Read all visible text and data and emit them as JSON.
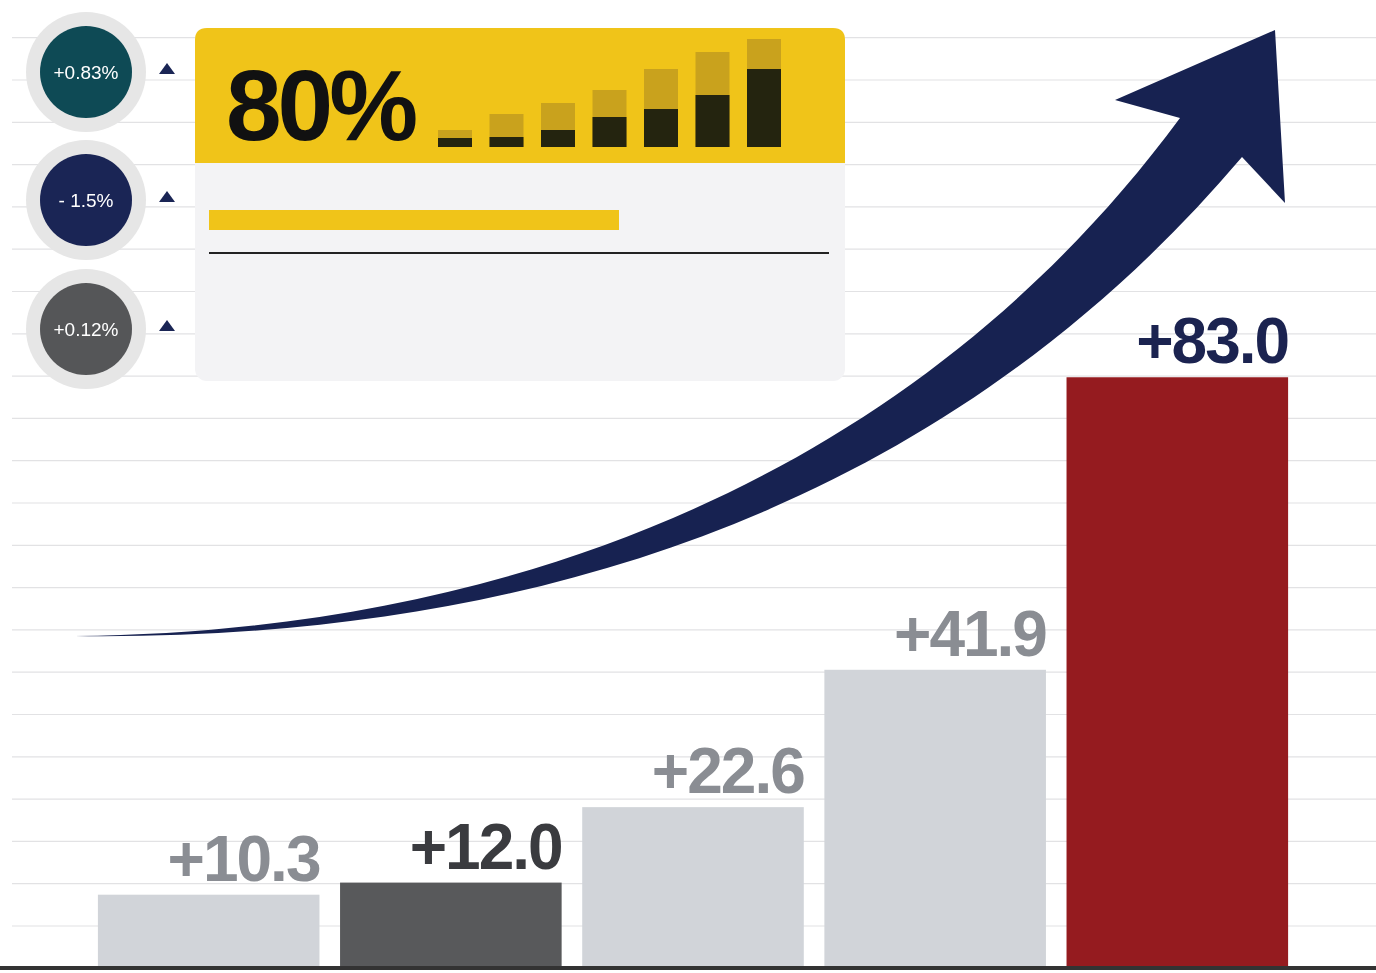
{
  "chart_data": {
    "type": "bar",
    "categories": [
      null,
      null,
      null,
      null,
      null
    ],
    "values": [
      10.3,
      12.0,
      22.6,
      41.9,
      83.0
    ],
    "colors": [
      "#d1d4d9",
      "#58595b",
      "#d1d4d9",
      "#d1d4d9",
      "#951b1f"
    ],
    "value_labels": [
      "+10.3",
      "+12.0",
      "+22.6",
      "+41.9",
      "+83.0"
    ],
    "annotations": [
      "+0.83%",
      "- 1.5%",
      "+0.12%",
      "80%"
    ],
    "grid": "y"
  }
}
